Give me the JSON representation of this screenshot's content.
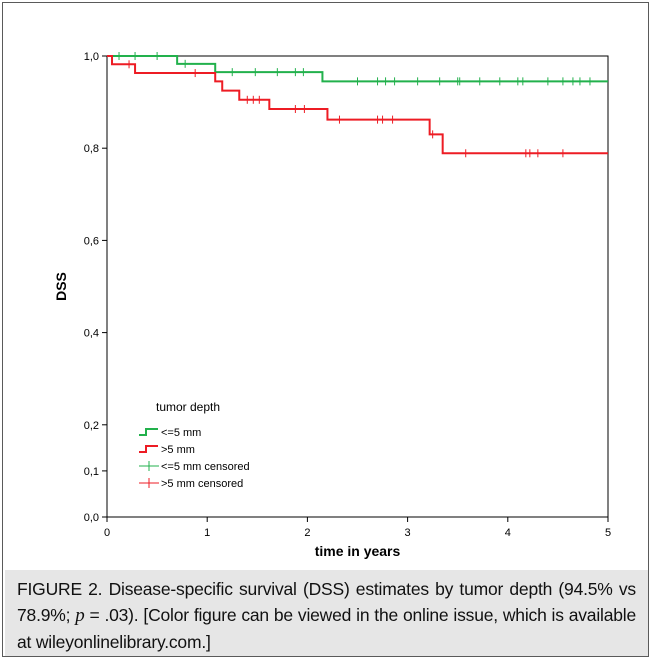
{
  "chart_data": {
    "type": "line",
    "step": true,
    "ylabel": "DSS",
    "xlabel": "time in years",
    "xlim": [
      0,
      5
    ],
    "y_ticks": [
      {
        "v": 0.0,
        "label": "0,0"
      },
      {
        "v": 0.1,
        "label": "0,1"
      },
      {
        "v": 0.2,
        "label": "0,2"
      },
      {
        "v": 0.4,
        "label": "0,4"
      },
      {
        "v": 0.6,
        "label": "0,6"
      },
      {
        "v": 0.8,
        "label": "0,8"
      },
      {
        "v": 1.0,
        "label": "1,0"
      }
    ],
    "x_ticks": [
      "0",
      "1",
      "2",
      "3",
      "4",
      "5"
    ],
    "legend": {
      "title": "tumor depth",
      "position": "lower-left",
      "entries": [
        "<=5 mm",
        ">5 mm",
        "<=5 mm censored",
        ">5 mm censored"
      ]
    },
    "series": [
      {
        "name": "<=5 mm",
        "color": "#22b14c",
        "steps": [
          [
            0,
            1.0
          ],
          [
            0.7,
            0.983
          ],
          [
            1.08,
            0.965
          ],
          [
            2.15,
            0.945
          ],
          [
            5,
            0.945
          ]
        ],
        "censored": [
          0.12,
          0.28,
          0.5,
          0.78,
          1.25,
          1.48,
          1.7,
          1.88,
          1.96,
          2.5,
          2.7,
          2.78,
          2.87,
          3.1,
          3.32,
          3.5,
          3.52,
          3.72,
          3.92,
          4.1,
          4.15,
          4.4,
          4.55,
          4.65,
          4.72,
          4.82
        ]
      },
      {
        "name": ">5 mm",
        "color": "#ed1c24",
        "steps": [
          [
            0,
            1.0
          ],
          [
            0.05,
            0.982
          ],
          [
            0.28,
            0.963
          ],
          [
            1.08,
            0.945
          ],
          [
            1.15,
            0.925
          ],
          [
            1.32,
            0.905
          ],
          [
            1.62,
            0.885
          ],
          [
            2.2,
            0.862
          ],
          [
            3.22,
            0.83
          ],
          [
            3.35,
            0.789
          ],
          [
            5,
            0.789
          ]
        ],
        "censored": [
          0.22,
          0.88,
          1.4,
          1.46,
          1.52,
          1.88,
          1.97,
          2.32,
          2.7,
          2.75,
          2.85,
          3.25,
          3.58,
          4.18,
          4.22,
          4.3,
          4.55
        ]
      }
    ]
  },
  "caption": {
    "figure_label": "FIGURE 2.",
    "text_a": " Disease-specific survival (DSS) estimates by tumor depth (94.5% vs 78.9%; ",
    "p": "p",
    "text_b": " = .03). [Color figure can be viewed in the online issue, which is available at wileyonlinelibrary.com.]"
  }
}
